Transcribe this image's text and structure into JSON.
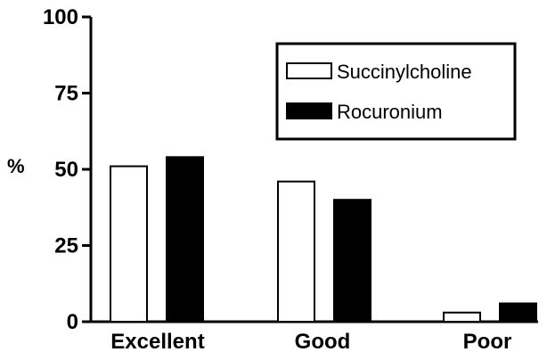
{
  "chart_data": {
    "type": "bar",
    "categories": [
      "Excellent",
      "Good",
      "Poor"
    ],
    "series": [
      {
        "name": "Succinylcholine",
        "values": [
          51,
          46,
          3
        ],
        "color": "#ffffff"
      },
      {
        "name": "Rocuronium",
        "values": [
          54,
          40,
          6
        ],
        "color": "#000000"
      }
    ],
    "ylabel": "%",
    "ylim": [
      0,
      100
    ],
    "yticks": [
      0,
      25,
      50,
      75,
      100
    ],
    "legend_position": "top-right",
    "grid": false
  }
}
